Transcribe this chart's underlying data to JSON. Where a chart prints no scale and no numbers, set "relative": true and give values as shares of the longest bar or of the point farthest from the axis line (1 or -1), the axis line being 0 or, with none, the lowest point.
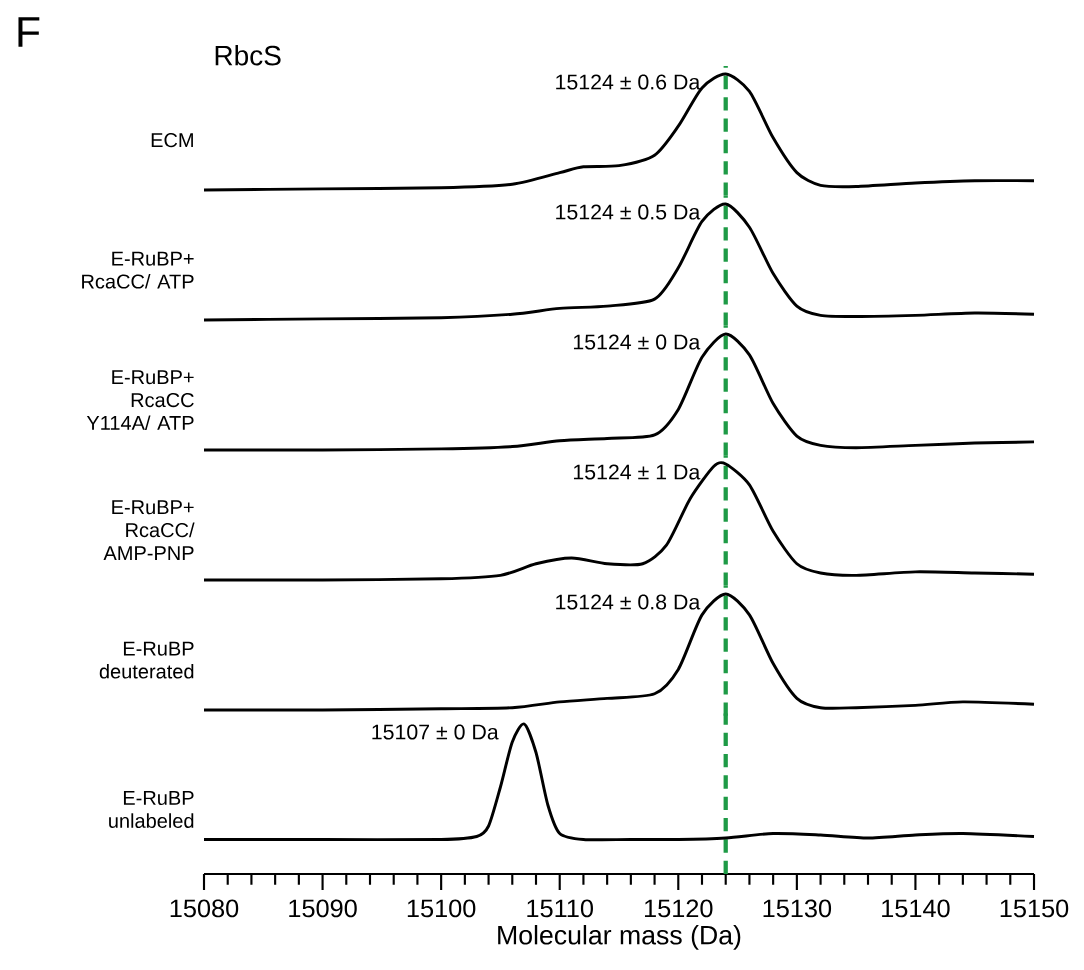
{
  "chart_data": [
    {
      "type": "line",
      "title": "RbcS",
      "ylabel": "ECM",
      "relative": true,
      "xlim": [
        15080,
        15150
      ],
      "tick_labels": false,
      "x": [
        15080,
        15090,
        15100,
        15106,
        15110,
        15112,
        15115,
        15118,
        15120,
        15122,
        15124,
        15126,
        15128,
        15130,
        15132,
        15135,
        15140,
        15145,
        15150
      ],
      "series": [
        {
          "color": "#000000",
          "values": [
            0,
            0.01,
            0.02,
            0.05,
            0.15,
            0.2,
            0.21,
            0.3,
            0.55,
            0.88,
            1,
            0.85,
            0.45,
            0.15,
            0.04,
            0.03,
            0.06,
            0.08,
            0.08
          ]
        }
      ],
      "ref_lines": [
        {
          "axis": "x",
          "value": 15124,
          "color": "#1e9a46",
          "line_style": "dashed"
        }
      ],
      "annotations": [
        "F",
        "15124 ± 0.6 Da"
      ]
    },
    {
      "type": "line",
      "ylabel": "E-RuBP+ RcaCC/ ATP",
      "relative": true,
      "xlim": [
        15080,
        15150
      ],
      "tick_labels": false,
      "x": [
        15080,
        15090,
        15100,
        15106,
        15110,
        15114,
        15118,
        15120,
        15122,
        15124,
        15126,
        15128,
        15130,
        15132,
        15135,
        15140,
        15145,
        15150
      ],
      "series": [
        {
          "color": "#000000",
          "values": [
            0,
            0.01,
            0.02,
            0.05,
            0.1,
            0.12,
            0.18,
            0.45,
            0.85,
            1,
            0.8,
            0.4,
            0.12,
            0.04,
            0.03,
            0.04,
            0.06,
            0.05
          ]
        }
      ],
      "ref_lines": [
        {
          "axis": "x",
          "value": 15124,
          "color": "#1e9a46",
          "line_style": "dashed"
        }
      ],
      "annotations": [
        "15124 ± 0.5 Da"
      ]
    },
    {
      "type": "line",
      "ylabel": "E-RuBP+ RcaCC Y114A/ ATP",
      "relative": true,
      "xlim": [
        15080,
        15150
      ],
      "tick_labels": false,
      "x": [
        15080,
        15090,
        15100,
        15106,
        15110,
        15114,
        15118,
        15120,
        15122,
        15124,
        15126,
        15128,
        15130,
        15132,
        15135,
        15140,
        15145,
        15150
      ],
      "series": [
        {
          "color": "#000000",
          "values": [
            0,
            0.0,
            0.01,
            0.03,
            0.08,
            0.1,
            0.13,
            0.35,
            0.8,
            1,
            0.82,
            0.4,
            0.12,
            0.04,
            0.02,
            0.04,
            0.06,
            0.07
          ]
        }
      ],
      "ref_lines": [
        {
          "axis": "x",
          "value": 15124,
          "color": "#1e9a46",
          "line_style": "dashed"
        }
      ],
      "annotations": [
        "15124 ± 0 Da"
      ]
    },
    {
      "type": "line",
      "ylabel": "E-RuBP+ RcaCC/ AMP-PNP",
      "relative": true,
      "xlim": [
        15080,
        15150
      ],
      "tick_labels": false,
      "x": [
        15080,
        15090,
        15100,
        15105,
        15108,
        15111,
        15114,
        15117,
        15119,
        15121,
        15123,
        15124,
        15126,
        15128,
        15130,
        15132,
        15135,
        15140,
        15145,
        15150
      ],
      "series": [
        {
          "color": "#000000",
          "values": [
            0,
            0.0,
            0.01,
            0.04,
            0.14,
            0.19,
            0.14,
            0.14,
            0.3,
            0.7,
            0.98,
            1,
            0.82,
            0.42,
            0.14,
            0.06,
            0.04,
            0.07,
            0.06,
            0.05
          ]
        }
      ],
      "ref_lines": [
        {
          "axis": "x",
          "value": 15124,
          "color": "#1e9a46",
          "line_style": "dashed"
        }
      ],
      "annotations": [
        "15124 ± 1 Da"
      ]
    },
    {
      "type": "line",
      "ylabel": "E-RuBP deuterated",
      "relative": true,
      "xlim": [
        15080,
        15150
      ],
      "tick_labels": false,
      "x": [
        15080,
        15090,
        15100,
        15106,
        15110,
        15114,
        15118,
        15120,
        15122,
        15124,
        15126,
        15128,
        15130,
        15132,
        15135,
        15140,
        15144,
        15150
      ],
      "series": [
        {
          "color": "#000000",
          "values": [
            0,
            0.0,
            0.01,
            0.02,
            0.07,
            0.1,
            0.14,
            0.35,
            0.82,
            1,
            0.82,
            0.4,
            0.1,
            0.02,
            0.02,
            0.04,
            0.07,
            0.05
          ]
        }
      ],
      "ref_lines": [
        {
          "axis": "x",
          "value": 15124,
          "color": "#1e9a46",
          "line_style": "dashed"
        }
      ],
      "annotations": [
        "15124 ± 0.8 Da"
      ]
    },
    {
      "type": "line",
      "ylabel": "E-RuBP unlabeled",
      "xlabel": "Molecular mass (Da)",
      "relative": true,
      "xlim": [
        15080,
        15150
      ],
      "tick_labels": "x",
      "xticks": [
        15080,
        15090,
        15100,
        15110,
        15120,
        15130,
        15140,
        15150
      ],
      "x": [
        15080,
        15090,
        15100,
        15103,
        15104,
        15105,
        15106,
        15107,
        15108,
        15109,
        15110,
        15112,
        15116,
        15120,
        15124,
        15128,
        15132,
        15136,
        15140,
        15144,
        15150
      ],
      "series": [
        {
          "color": "#000000",
          "values": [
            0.23,
            0.23,
            0.23,
            0.25,
            0.32,
            0.58,
            0.88,
            1,
            0.81,
            0.46,
            0.27,
            0.23,
            0.23,
            0.23,
            0.24,
            0.27,
            0.26,
            0.24,
            0.26,
            0.27,
            0.25
          ]
        }
      ],
      "ref_lines": [
        {
          "axis": "x",
          "value": 15124,
          "color": "#1e9a46",
          "line_style": "dashed"
        }
      ],
      "annotations": [
        "15107 ± 0 Da"
      ]
    }
  ]
}
